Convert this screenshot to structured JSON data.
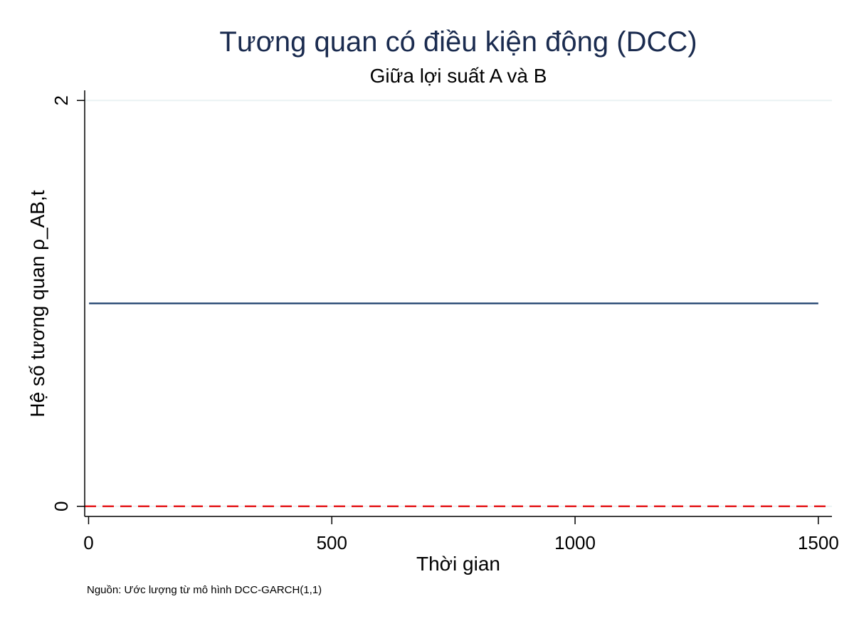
{
  "chart_data": {
    "type": "line",
    "title": "Tương quan có điều kiện động (DCC)",
    "subtitle": "Giữa lợi suất A và B",
    "xlabel": "Thời gian",
    "ylabel": "Hệ số tương quan ρ_AB,t",
    "note": "Nguồn: Ước lượng từ mô hình DCC-GARCH(1,1)",
    "xlim": [
      -8,
      1528
    ],
    "ylim": [
      -0.05,
      2.05
    ],
    "x_ticks": [
      0,
      500,
      1000,
      1500
    ],
    "y_ticks": [
      0,
      2
    ],
    "grid": "horizontal",
    "series": [
      {
        "x": [
          1,
          1500
        ],
        "values": [
          1,
          1
        ],
        "color": "#1a3d6b",
        "style": "solid"
      }
    ],
    "reference_lines": [
      {
        "y": 0,
        "color": "#e41a1c",
        "style": "dashed"
      }
    ],
    "colors": {
      "title": "#1a2b4f",
      "grid": "#eaf2f3",
      "axis": "#000000"
    }
  }
}
